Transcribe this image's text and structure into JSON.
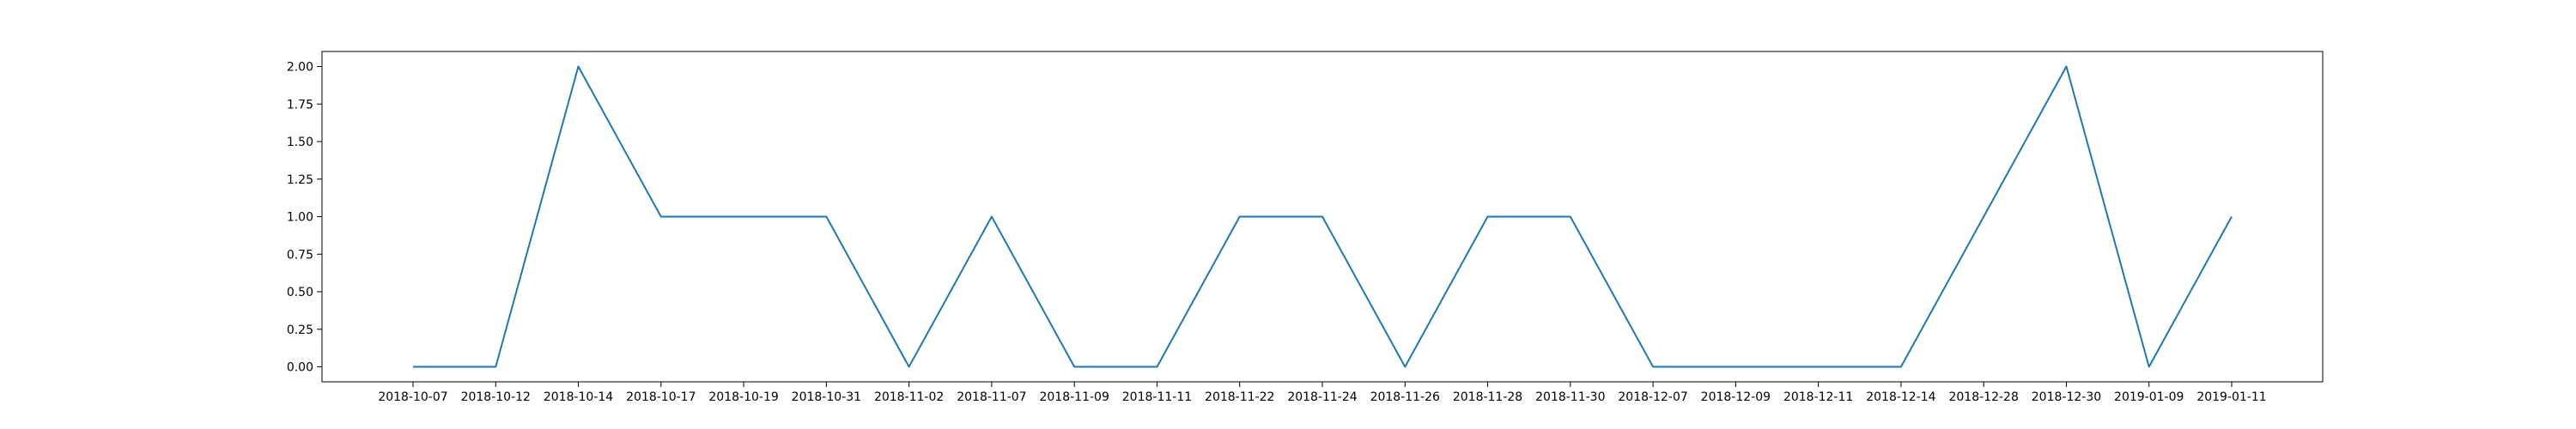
{
  "chart_data": {
    "type": "line",
    "categories": [
      "2018-10-07",
      "2018-10-12",
      "2018-10-14",
      "2018-10-17",
      "2018-10-19",
      "2018-10-31",
      "2018-11-02",
      "2018-11-07",
      "2018-11-09",
      "2018-11-11",
      "2018-11-22",
      "2018-11-24",
      "2018-11-26",
      "2018-11-28",
      "2018-11-30",
      "2018-12-07",
      "2018-12-09",
      "2018-12-11",
      "2018-12-14",
      "2018-12-28",
      "2018-12-30",
      "2019-01-09",
      "2019-01-11"
    ],
    "series": [
      {
        "values": [
          0,
          0,
          2,
          1,
          1,
          1,
          0,
          1,
          0,
          0,
          1,
          1,
          0,
          1,
          1,
          0,
          0,
          0,
          0,
          1,
          2,
          0,
          1
        ]
      }
    ],
    "ylim": [
      -0.1,
      2.1
    ],
    "yticks": [
      "0.00",
      "0.25",
      "0.50",
      "0.75",
      "1.00",
      "1.25",
      "1.50",
      "1.75",
      "2.00"
    ],
    "grid": false,
    "line_color": "#1f77b4"
  }
}
